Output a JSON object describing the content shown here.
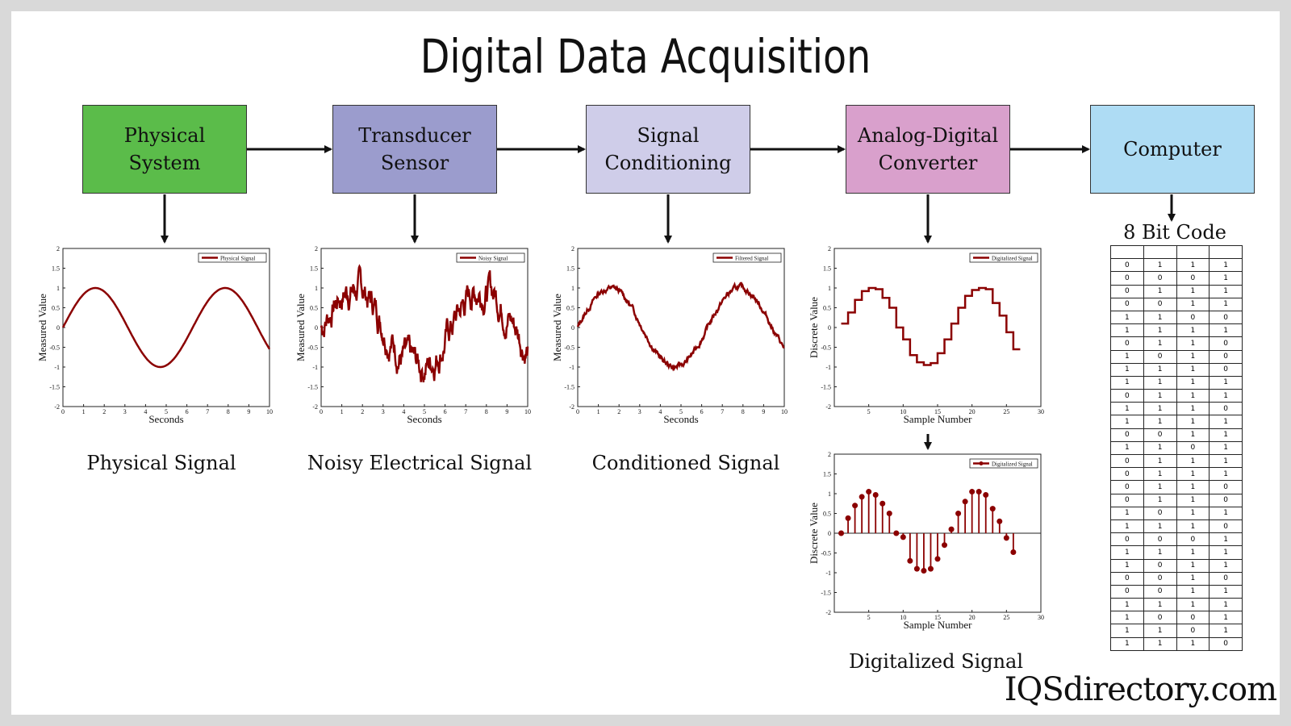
{
  "title": "Digital Data Acquisition",
  "brand": "IQSdirectory.com",
  "colors": {
    "signal": "#8b0000",
    "box_physical": "#5bbc4a",
    "box_transducer": "#9b9ccd",
    "box_conditioning": "#cfcde9",
    "box_adc": "#d9a0cc",
    "box_computer": "#aedcf4"
  },
  "blocks": [
    {
      "label": "Physical\nSystem",
      "color": "#5bbc4a"
    },
    {
      "label": "Transducer\nSensor",
      "color": "#9b9ccd"
    },
    {
      "label": "Signal\nConditioning",
      "color": "#cfcde9"
    },
    {
      "label": "Analog-Digital\nConverter",
      "color": "#d9a0cc"
    },
    {
      "label": "Computer",
      "color": "#aedcf4"
    }
  ],
  "captions": {
    "physical": "Physical Signal",
    "noisy": "Noisy Electrical Signal",
    "conditioned": "Conditioned Signal",
    "digitalized": "Digitalized Signal"
  },
  "code": {
    "title": "8 Bit Code",
    "rows": [
      [
        "",
        "",
        "",
        ""
      ],
      [
        "0",
        "1",
        "1",
        "1"
      ],
      [
        "0",
        "0",
        "0",
        "1"
      ],
      [
        "0",
        "1",
        "1",
        "1"
      ],
      [
        "0",
        "0",
        "1",
        "1"
      ],
      [
        "1",
        "1",
        "0",
        "0"
      ],
      [
        "1",
        "1",
        "1",
        "1"
      ],
      [
        "0",
        "1",
        "1",
        "0"
      ],
      [
        "1",
        "0",
        "1",
        "0"
      ],
      [
        "1",
        "1",
        "1",
        "0"
      ],
      [
        "1",
        "1",
        "1",
        "1"
      ],
      [
        "0",
        "1",
        "1",
        "1"
      ],
      [
        "1",
        "1",
        "1",
        "0"
      ],
      [
        "1",
        "1",
        "1",
        "1"
      ],
      [
        "0",
        "0",
        "1",
        "1"
      ],
      [
        "1",
        "1",
        "0",
        "1"
      ],
      [
        "0",
        "1",
        "1",
        "1"
      ],
      [
        "0",
        "1",
        "1",
        "1"
      ],
      [
        "0",
        "1",
        "1",
        "0"
      ],
      [
        "0",
        "1",
        "1",
        "0"
      ],
      [
        "1",
        "0",
        "1",
        "1"
      ],
      [
        "1",
        "1",
        "1",
        "0"
      ],
      [
        "0",
        "0",
        "0",
        "1"
      ],
      [
        "1",
        "1",
        "1",
        "1"
      ],
      [
        "1",
        "0",
        "1",
        "1"
      ],
      [
        "0",
        "0",
        "1",
        "0"
      ],
      [
        "0",
        "0",
        "1",
        "1"
      ],
      [
        "1",
        "1",
        "1",
        "1"
      ],
      [
        "1",
        "0",
        "0",
        "1"
      ],
      [
        "1",
        "1",
        "0",
        "1"
      ],
      [
        "1",
        "1",
        "1",
        "0"
      ]
    ]
  },
  "chart_data": [
    {
      "id": "physical",
      "type": "line",
      "legend": "Physical Signal",
      "xlabel": "Seconds",
      "ylabel": "Measured Value",
      "xlim": [
        0,
        10
      ],
      "ylim": [
        -2,
        2
      ],
      "xticks": [
        "0",
        "1",
        "2",
        "3",
        "4",
        "5",
        "6",
        "7",
        "8",
        "9",
        "10"
      ],
      "yticks": [
        "2",
        "1.5",
        "1",
        "0.5",
        "0",
        "-0.5",
        "-1",
        "-1.5",
        "-2"
      ],
      "function": "sin(x)",
      "noise": 0
    },
    {
      "id": "noisy",
      "type": "line",
      "legend": "Noisy Signal",
      "xlabel": "Seconds",
      "ylabel": "Measured Value",
      "xlim": [
        0,
        10
      ],
      "ylim": [
        -2,
        2
      ],
      "xticks": [
        "0",
        "1",
        "2",
        "3",
        "4",
        "5",
        "6",
        "7",
        "8",
        "9",
        "10"
      ],
      "yticks": [
        "2",
        "1.5",
        "1",
        "0.5",
        "0",
        "-0.5",
        "-1",
        "-1.5",
        "-2"
      ],
      "function": "sin(x)+noise",
      "noise": 0.22
    },
    {
      "id": "conditioned",
      "type": "line",
      "legend": "Filtered Signal",
      "xlabel": "Seconds",
      "ylabel": "Measured Value",
      "xlim": [
        0,
        10
      ],
      "ylim": [
        -2,
        2
      ],
      "xticks": [
        "0",
        "1",
        "2",
        "3",
        "4",
        "5",
        "6",
        "7",
        "8",
        "9",
        "10"
      ],
      "yticks": [
        "2",
        "1.5",
        "1",
        "0.5",
        "0",
        "-0.5",
        "-1",
        "-1.5",
        "-2"
      ],
      "function": "sin(x)+small noise",
      "noise": 0.04
    },
    {
      "id": "stairs",
      "type": "line",
      "legend": "Digitalized Signal",
      "xlabel": "Sample Number",
      "ylabel": "Discrete Value",
      "xlim": [
        0,
        30
      ],
      "ylim": [
        -2,
        2
      ],
      "xticks": [
        "5",
        "10",
        "15",
        "20",
        "25",
        "30"
      ],
      "yticks": [
        "2",
        "1.5",
        "1",
        "0.5",
        "0",
        "-0.5",
        "-1",
        "-1.5",
        "-2"
      ],
      "x": [
        1,
        2,
        3,
        4,
        5,
        6,
        7,
        8,
        9,
        10,
        11,
        12,
        13,
        14,
        15,
        16,
        17,
        18,
        19,
        20,
        21,
        22,
        23,
        24,
        25,
        26
      ],
      "values": [
        0.1,
        0.38,
        0.7,
        0.92,
        1.0,
        0.97,
        0.75,
        0.5,
        0.0,
        -0.3,
        -0.7,
        -0.88,
        -0.95,
        -0.9,
        -0.65,
        -0.3,
        0.1,
        0.5,
        0.8,
        0.95,
        1.0,
        0.97,
        0.62,
        0.3,
        -0.12,
        -0.55
      ]
    },
    {
      "id": "stem",
      "type": "scatter",
      "legend": "Digitalized Signal",
      "xlabel": "Sample Number",
      "ylabel": "Discrete Value",
      "xlim": [
        0,
        30
      ],
      "ylim": [
        -2,
        2
      ],
      "xticks": [
        "5",
        "10",
        "15",
        "20",
        "25",
        "30"
      ],
      "yticks": [
        "2",
        "1.5",
        "1",
        "0.5",
        "0",
        "-0.5",
        "-1",
        "-1.5",
        "-2"
      ],
      "x": [
        1,
        2,
        3,
        4,
        5,
        6,
        7,
        8,
        9,
        10,
        11,
        12,
        13,
        14,
        15,
        16,
        17,
        18,
        19,
        20,
        21,
        22,
        23,
        24,
        25,
        26
      ],
      "values": [
        0.0,
        0.38,
        0.7,
        0.92,
        1.05,
        0.97,
        0.75,
        0.5,
        0.0,
        -0.1,
        -0.7,
        -0.9,
        -0.95,
        -0.9,
        -0.65,
        -0.3,
        0.1,
        0.5,
        0.8,
        1.05,
        1.05,
        0.97,
        0.62,
        0.3,
        -0.12,
        -0.48
      ]
    }
  ]
}
